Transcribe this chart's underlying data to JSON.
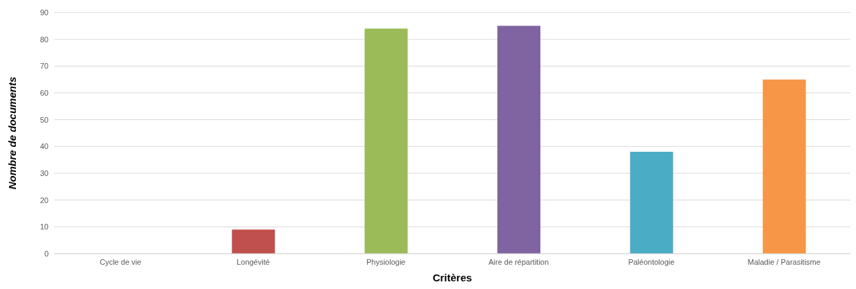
{
  "chart_data": {
    "type": "bar",
    "xlabel": "Critères",
    "ylabel": "Nombre de documents",
    "categories": [
      "Cycle de vie",
      "Longévité",
      "Physiologie",
      "Aire de répartition",
      "Paléontologie",
      "Maladie / Parasitisme"
    ],
    "values": [
      0,
      9,
      84,
      85,
      38,
      65
    ],
    "colors": [
      "#4f81bd",
      "#c0504d",
      "#9bbb59",
      "#8064a2",
      "#4bacc6",
      "#f79646"
    ],
    "ylim": [
      0,
      90
    ],
    "yticks": [
      0,
      10,
      20,
      30,
      40,
      50,
      60,
      70,
      80,
      90
    ],
    "grid": "y"
  }
}
